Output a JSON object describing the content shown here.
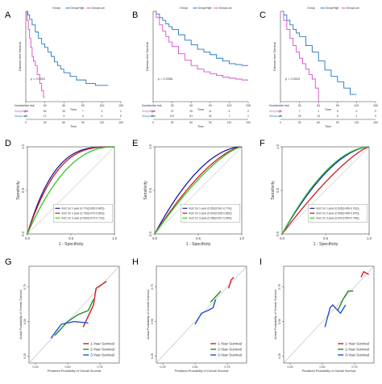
{
  "figure": {
    "panels": [
      "A",
      "B",
      "C",
      "D",
      "E",
      "F",
      "G",
      "H",
      "I"
    ]
  },
  "chart_data": [
    {
      "panel": "A",
      "type": "line",
      "step": true,
      "title": "",
      "xlabel": "Time",
      "ylabel": "Disease-free Survival",
      "xlim": [
        0,
        150
      ],
      "ylim": [
        0,
        1
      ],
      "xticks": [
        0,
        30,
        60,
        90,
        120,
        150
      ],
      "xticklabels": [
        "0",
        "30",
        "60",
        "90",
        "120",
        "150"
      ],
      "legend": {
        "title": "Group",
        "items": [
          "GroupHigh",
          "GroupLow"
        ],
        "placement": "top"
      },
      "pvalue": "p < 0.0001",
      "series": [
        {
          "name": "GroupLow",
          "color": "#1f77c4",
          "x": [
            0,
            3,
            6,
            10,
            15,
            20,
            25,
            30,
            35,
            40,
            45,
            50,
            55,
            60,
            70,
            80,
            95,
            110,
            130
          ],
          "y": [
            1,
            0.96,
            0.91,
            0.85,
            0.77,
            0.7,
            0.64,
            0.6,
            0.55,
            0.5,
            0.44,
            0.4,
            0.36,
            0.32,
            0.28,
            0.24,
            0.2,
            0.18,
            0.18
          ]
        },
        {
          "name": "GroupHigh",
          "color": "#d94bd0",
          "x": [
            0,
            2,
            4,
            6,
            8,
            10,
            12,
            15,
            18,
            22,
            25,
            28,
            30
          ],
          "y": [
            1,
            0.9,
            0.8,
            0.7,
            0.6,
            0.5,
            0.45,
            0.4,
            0.3,
            0.2,
            0.12,
            0.05,
            0.05
          ]
        }
      ],
      "risk_table": {
        "title": "Number at risk",
        "xlabel": "Time",
        "times": [
          0,
          30,
          60,
          90,
          120,
          150
        ],
        "rows": [
          {
            "name": "GroupHigh",
            "values": [
              "126",
              "53",
              "33",
              "7",
              "1",
              "1"
            ]
          },
          {
            "name": "GroupLow",
            "values": [
              "45",
              "17",
              "3",
              "0",
              "0",
              "0"
            ]
          }
        ]
      }
    },
    {
      "panel": "B",
      "type": "line",
      "step": true,
      "title": "",
      "xlabel": "Time",
      "ylabel": "Disease-free Survival",
      "xlim": [
        0,
        150
      ],
      "ylim": [
        0,
        1
      ],
      "xticks": [
        0,
        30,
        60,
        90,
        120,
        150
      ],
      "xticklabels": [
        "0",
        "30",
        "60",
        "90",
        "120",
        "150"
      ],
      "legend": {
        "title": "Group",
        "items": [
          "GroupHigh",
          "GroupLow"
        ],
        "placement": "top"
      },
      "pvalue": "p = 0.0056",
      "series": [
        {
          "name": "GroupLow",
          "color": "#1f77c4",
          "x": [
            0,
            5,
            10,
            15,
            20,
            25,
            30,
            40,
            50,
            60,
            70,
            80,
            90,
            100,
            110,
            120,
            130,
            140,
            150
          ],
          "y": [
            1,
            0.97,
            0.93,
            0.9,
            0.86,
            0.83,
            0.8,
            0.74,
            0.68,
            0.63,
            0.58,
            0.55,
            0.52,
            0.48,
            0.45,
            0.42,
            0.41,
            0.4,
            0.4
          ]
        },
        {
          "name": "GroupHigh",
          "color": "#d94bd0",
          "x": [
            0,
            5,
            10,
            15,
            20,
            25,
            30,
            40,
            50,
            60,
            70,
            80,
            90,
            100,
            110,
            120,
            130,
            140,
            150
          ],
          "y": [
            1,
            0.93,
            0.85,
            0.78,
            0.72,
            0.66,
            0.61,
            0.53,
            0.46,
            0.4,
            0.36,
            0.33,
            0.31,
            0.29,
            0.27,
            0.26,
            0.25,
            0.24,
            0.24
          ]
        }
      ],
      "risk_table": {
        "title": "Number at risk",
        "xlabel": "Time",
        "times": [
          0,
          30,
          60,
          90,
          120,
          150
        ],
        "rows": [
          {
            "name": "GroupHigh",
            "values": [
              "105",
              "37",
              "20",
              "11",
              "4",
              "2"
            ]
          },
          {
            "name": "GroupLow",
            "values": [
              "254",
              "107",
              "61",
              "31",
              "7",
              "1"
            ]
          }
        ]
      }
    },
    {
      "panel": "C",
      "type": "line",
      "step": true,
      "title": "",
      "xlabel": "Time",
      "ylabel": "Disease-free Survival",
      "xlim": [
        0,
        150
      ],
      "ylim": [
        0,
        1
      ],
      "xticks": [
        0,
        30,
        60,
        90,
        120,
        150
      ],
      "xticklabels": [
        "0",
        "30",
        "60",
        "90",
        "120",
        "150"
      ],
      "legend": {
        "title": "Group",
        "items": [
          "GroupHigh",
          "GroupLow"
        ],
        "placement": "top"
      },
      "pvalue": "p = 0.0023",
      "series": [
        {
          "name": "GroupLow",
          "color": "#1f77c4",
          "x": [
            0,
            5,
            10,
            15,
            20,
            25,
            30,
            40,
            50,
            60,
            70,
            80,
            90,
            100,
            110,
            120
          ],
          "y": [
            1,
            0.96,
            0.9,
            0.85,
            0.8,
            0.76,
            0.72,
            0.62,
            0.55,
            0.45,
            0.35,
            0.28,
            0.22,
            0.15,
            0.08,
            0.08
          ]
        },
        {
          "name": "GroupHigh",
          "color": "#d94bd0",
          "x": [
            0,
            5,
            10,
            15,
            20,
            25,
            30,
            35,
            40,
            45,
            50,
            55,
            60
          ],
          "y": [
            1,
            0.9,
            0.8,
            0.7,
            0.62,
            0.55,
            0.48,
            0.42,
            0.36,
            0.3,
            0.25,
            0.15,
            0.0
          ]
        }
      ],
      "risk_table": {
        "title": "Number at risk",
        "xlabel": "Time",
        "times": [
          0,
          30,
          60,
          90,
          120,
          150
        ],
        "rows": [
          {
            "name": "GroupHigh",
            "values": [
              "21",
              "7",
              "1",
              "0",
              "0",
              "0"
            ]
          },
          {
            "name": "GroupLow",
            "values": [
              "45",
              "23",
              "13",
              "5",
              "1",
              "0"
            ]
          }
        ]
      }
    },
    {
      "panel": "D",
      "type": "line",
      "title": "",
      "xlabel": "1 - Specificity",
      "ylabel": "Sensitivity",
      "xlim": [
        0,
        1
      ],
      "ylim": [
        0,
        1
      ],
      "xticks": [
        0,
        0.5,
        1
      ],
      "xticklabels": [
        "0.0",
        "0.5",
        "1.0"
      ],
      "yticks": [
        0,
        0.5,
        1
      ],
      "yticklabels": [
        "0.0",
        "0.5",
        "1.0"
      ],
      "legend": {
        "placement": "bottom-right",
        "items": [
          "AUC for 1-year (0.770(0.695-0.845))",
          "AUC for 2-year (0.753(0.673-0.833))",
          "AUC for 3-year (0.694(0.574-0.714))"
        ]
      },
      "series": [
        {
          "name": "AUC for 1-year (0.770(0.695-0.845))",
          "color": "#1a1aa6",
          "auc": 0.77
        },
        {
          "name": "AUC for 2-year (0.753(0.673-0.833))",
          "color": "#cc1f1f",
          "auc": 0.753
        },
        {
          "name": "AUC for 3-year (0.694(0.574-0.714))",
          "color": "#2ec82e",
          "auc": 0.694
        }
      ]
    },
    {
      "panel": "E",
      "type": "line",
      "title": "",
      "xlabel": "1 - Specificity",
      "ylabel": "Sensitivity",
      "xlim": [
        0,
        1
      ],
      "ylim": [
        0,
        1
      ],
      "xticks": [
        0,
        0.5,
        1
      ],
      "xticklabels": [
        "0.0",
        "0.5",
        "1.0"
      ],
      "yticks": [
        0,
        0.5,
        1
      ],
      "yticklabels": [
        "0.0",
        "0.5",
        "1.0"
      ],
      "legend": {
        "placement": "bottom-right",
        "items": [
          "AUC for 1-year (0.652(0.541-0.774))",
          "AUC for 2-year (0.604(0.528-0.683))",
          "AUC for 3-year (0.585(0.501-0.665))"
        ]
      },
      "series": [
        {
          "name": "AUC for 1-year (0.652(0.541-0.774))",
          "color": "#1a1aa6",
          "auc": 0.652
        },
        {
          "name": "AUC for 2-year (0.604(0.528-0.683))",
          "color": "#cc1f1f",
          "auc": 0.604
        },
        {
          "name": "AUC for 3-year (0.585(0.501-0.665))",
          "color": "#2ec82e",
          "auc": 0.585
        }
      ]
    },
    {
      "panel": "F",
      "type": "line",
      "title": "",
      "xlabel": "1 - Specificity",
      "ylabel": "Sensitivity",
      "xlim": [
        0,
        1
      ],
      "ylim": [
        0,
        1
      ],
      "xticks": [
        0,
        0.5,
        1
      ],
      "xticklabels": [
        "0.0",
        "0.5",
        "1.0"
      ],
      "yticks": [
        0,
        0.5,
        1
      ],
      "yticklabels": [
        "0.0",
        "0.5",
        "1.0"
      ],
      "legend": {
        "placement": "bottom-right",
        "items": [
          "AUC for 1-year (0.635(0.456-0.781))",
          "AUC for 2-year (0.566(0.458-0.675))",
          "AUC for 3-year (0.647(0.554-0.746))"
        ]
      },
      "series": [
        {
          "name": "AUC for 1-year (0.635(0.456-0.781))",
          "color": "#1a1aa6",
          "auc": 0.635
        },
        {
          "name": "AUC for 2-year (0.566(0.458-0.675))",
          "color": "#cc1f1f",
          "auc": 0.566
        },
        {
          "name": "AUC for 3-year (0.647(0.554-0.746))",
          "color": "#2ec82e",
          "auc": 0.647
        }
      ]
    },
    {
      "panel": "G",
      "type": "line",
      "title": "",
      "xlabel": "Predicted Probability of Overall Survival",
      "ylabel": "Actual Probability of Overall Survival",
      "xlim": [
        0.2,
        0.9
      ],
      "ylim": [
        0.2,
        0.9
      ],
      "xticks": [
        0.25,
        0.5,
        0.75
      ],
      "xticklabels": [
        "0.25",
        "0.50",
        "0.75"
      ],
      "yticks": [
        0.25,
        0.5,
        0.75
      ],
      "yticklabels": [
        "0.25",
        "0.50",
        "0.75"
      ],
      "legend": {
        "placement": "bottom-right",
        "items": [
          "1-Year Survival",
          "2-Year Survival",
          "3-Year Survival"
        ]
      },
      "series": [
        {
          "name": "1-Year Survival",
          "color": "#cc1f1f",
          "x": [
            0.62,
            0.7,
            0.72,
            0.8
          ],
          "y": [
            0.46,
            0.62,
            0.74,
            0.79
          ]
        },
        {
          "name": "2-Year Survival",
          "color": "#1f8f1f",
          "x": [
            0.4,
            0.5,
            0.58,
            0.66,
            0.7
          ],
          "y": [
            0.4,
            0.5,
            0.55,
            0.58,
            0.66
          ]
        },
        {
          "name": "3-Year Survival",
          "color": "#1f4fd6",
          "x": [
            0.37,
            0.45,
            0.55,
            0.66
          ],
          "y": [
            0.38,
            0.48,
            0.5,
            0.49
          ]
        }
      ]
    },
    {
      "panel": "H",
      "type": "line",
      "title": "",
      "xlabel": "Predicted Probability of Overall Survival",
      "ylabel": "Actual Probability of Overall Survival",
      "xlim": [
        0.2,
        0.9
      ],
      "ylim": [
        0.2,
        0.9
      ],
      "xticks": [
        0.25,
        0.5,
        0.75
      ],
      "xticklabels": [
        "0.25",
        "0.50",
        "0.75"
      ],
      "yticks": [
        0.25,
        0.5,
        0.75
      ],
      "yticklabels": [
        "0.25",
        "0.50",
        "0.75"
      ],
      "legend": {
        "placement": "bottom-right",
        "items": [
          "1-Year Survival",
          "2-Year Survival",
          "3-Year Survival"
        ]
      },
      "series": [
        {
          "name": "1-Year Survival",
          "color": "#cc1f1f",
          "x": [
            0.76,
            0.78,
            0.8
          ],
          "y": [
            0.74,
            0.8,
            0.82
          ]
        },
        {
          "name": "2-Year Survival",
          "color": "#1f8f1f",
          "x": [
            0.62,
            0.66,
            0.7
          ],
          "y": [
            0.64,
            0.68,
            0.72
          ]
        },
        {
          "name": "3-Year Survival",
          "color": "#1f4fd6",
          "x": [
            0.5,
            0.55,
            0.6,
            0.64,
            0.66
          ],
          "y": [
            0.48,
            0.56,
            0.58,
            0.6,
            0.66
          ]
        }
      ]
    },
    {
      "panel": "I",
      "type": "line",
      "title": "",
      "xlabel": "Predicted Probability of Overall Survival",
      "ylabel": "Actual Probability of Overall Survival",
      "xlim": [
        0.2,
        0.9
      ],
      "ylim": [
        0.2,
        0.9
      ],
      "xticks": [
        0.25,
        0.5,
        0.75
      ],
      "xticklabels": [
        "0.25",
        "0.50",
        "0.75"
      ],
      "yticks": [
        0.25,
        0.5,
        0.75
      ],
      "yticklabels": [
        "0.25",
        "0.50",
        "0.75"
      ],
      "legend": {
        "placement": "bottom-right",
        "items": [
          "1-Year Survival",
          "2-Year Survival",
          "3-Year Survival"
        ]
      },
      "series": [
        {
          "name": "1-Year Survival",
          "color": "#cc1f1f",
          "x": [
            0.8,
            0.82,
            0.86
          ],
          "y": [
            0.82,
            0.86,
            0.84
          ]
        },
        {
          "name": "2-Year Survival",
          "color": "#1f8f1f",
          "x": [
            0.62,
            0.66,
            0.7,
            0.74
          ],
          "y": [
            0.58,
            0.66,
            0.72,
            0.72
          ]
        },
        {
          "name": "3-Year Survival",
          "color": "#1f4fd6",
          "x": [
            0.52,
            0.56,
            0.58,
            0.64,
            0.68
          ],
          "y": [
            0.46,
            0.6,
            0.62,
            0.56,
            0.62
          ]
        }
      ]
    }
  ]
}
